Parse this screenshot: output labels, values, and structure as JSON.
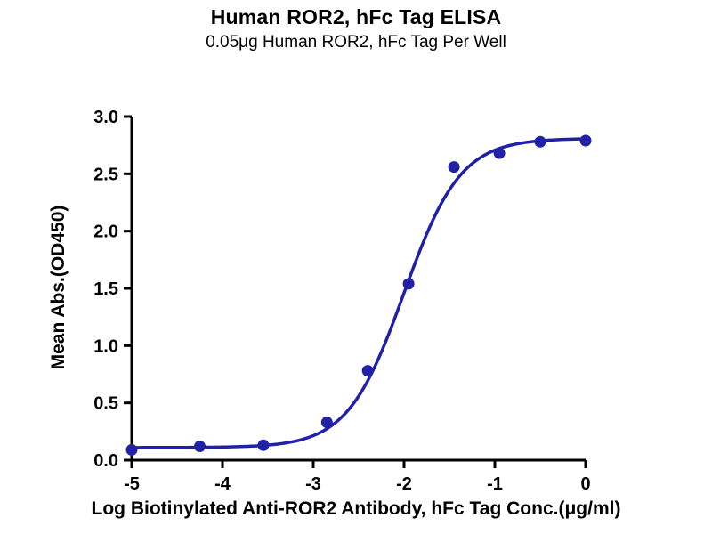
{
  "page": {
    "title": "Human ROR2, hFc Tag ELISA",
    "subtitle": "0.05μg Human ROR2, hFc Tag Per Well"
  },
  "chart_data": {
    "type": "scatter",
    "title": "Human ROR2, hFc Tag ELISA",
    "subtitle": "0.05μg Human ROR2, hFc Tag Per Well",
    "xlabel": "Log Biotinylated Anti-ROR2 Antibody, hFc Tag Conc.(μg/ml)",
    "ylabel": "Mean Abs.(OD450)",
    "xlim": [
      -5,
      0
    ],
    "ylim": [
      0,
      3.0
    ],
    "x_ticks": [
      -5,
      -4,
      -3,
      -2,
      -1,
      0
    ],
    "x_tick_labels": [
      "-5",
      "-4",
      "-3",
      "-2",
      "-1",
      "0"
    ],
    "y_ticks": [
      0,
      0.5,
      1.0,
      1.5,
      2.0,
      2.5,
      3.0
    ],
    "y_tick_labels": [
      "0.0",
      "0.5",
      "1.0",
      "1.5",
      "2.0",
      "2.5",
      "3.0"
    ],
    "points": [
      [
        -5.0,
        0.09
      ],
      [
        -4.25,
        0.12
      ],
      [
        -3.55,
        0.13
      ],
      [
        -2.85,
        0.33
      ],
      [
        -2.4,
        0.78
      ],
      [
        -1.95,
        1.54
      ],
      [
        -1.45,
        2.56
      ],
      [
        -0.95,
        2.68
      ],
      [
        -0.5,
        2.78
      ],
      [
        0.0,
        2.79
      ]
    ],
    "fit": {
      "model": "4PL",
      "bottom": 0.11,
      "top": 2.81,
      "logEC50": -2.0,
      "hill": 1.4
    },
    "color": "#2121A8",
    "axis_color": "#000000",
    "grid": false,
    "legend": "none"
  }
}
